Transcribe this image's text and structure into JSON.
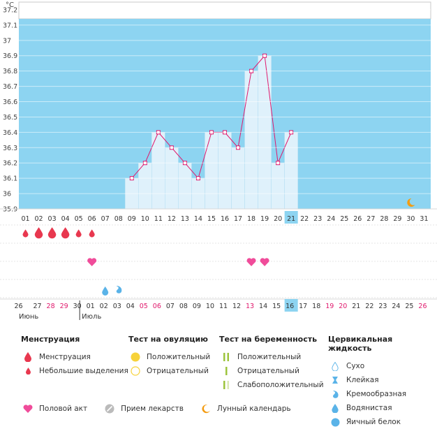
{
  "chart_data": {
    "type": "line",
    "unit": "°C",
    "y_ticks": [
      "37.2",
      "37.1",
      "37",
      "36.9",
      "36.8",
      "36.7",
      "36.6",
      "36.5",
      "36.4",
      "36.3",
      "36.2",
      "36.1",
      "36",
      "35.9"
    ],
    "ylim": [
      35.9,
      37.25
    ],
    "x_days": [
      "01",
      "02",
      "03",
      "04",
      "05",
      "06",
      "07",
      "08",
      "09",
      "10",
      "11",
      "12",
      "13",
      "14",
      "15",
      "16",
      "17",
      "18",
      "19",
      "20",
      "21",
      "22",
      "23",
      "24",
      "25",
      "26",
      "27",
      "28",
      "29",
      "30",
      "31"
    ],
    "highlight_day": "21",
    "series": [
      {
        "values": [
          null,
          null,
          null,
          null,
          null,
          null,
          null,
          null,
          36.1,
          36.2,
          36.4,
          36.3,
          36.2,
          36.1,
          36.4,
          36.4,
          36.3,
          36.8,
          36.9,
          36.2,
          36.4,
          null,
          null,
          null,
          null,
          null,
          null,
          null,
          null,
          null,
          null
        ]
      }
    ],
    "cycle_days": [
      "26",
      "27",
      "28",
      "29",
      "30",
      "01",
      "02",
      "03",
      "04",
      "05",
      "06",
      "07",
      "08",
      "09",
      "10",
      "11",
      "12",
      "13",
      "14",
      "15",
      "16",
      "17",
      "18",
      "19",
      "20",
      "21",
      "22",
      "23",
      "24",
      "25",
      "26"
    ],
    "cycle_red_days": [
      "28",
      "29",
      "05",
      "06",
      "13",
      "19",
      "20",
      "26"
    ],
    "cycle_highlight": "16",
    "month_labels": [
      "Июнь",
      "Июль"
    ],
    "menstruation_heavy_days": [
      "02",
      "03",
      "04"
    ],
    "menstruation_light_days": [
      "01",
      "05",
      "06"
    ],
    "intercourse_days": [
      "06",
      "18",
      "19"
    ],
    "fluid_watery_days": [
      "07"
    ],
    "fluid_creamy_days": [
      "08"
    ],
    "moon_days": [
      "30"
    ]
  },
  "legend": {
    "menstruation": {
      "title": "Менструация",
      "items": [
        "Менструация",
        "Небольшие выделения"
      ]
    },
    "ovulation": {
      "title": "Тест на овуляцию",
      "items": [
        "Положительный",
        "Отрицательный"
      ]
    },
    "pregnancy": {
      "title": "Тест на беременность",
      "items": [
        "Положительный",
        "Отрицательный",
        "Слабоположительный"
      ]
    },
    "cervical": {
      "title": "Цервикальная жидкость",
      "items": [
        "Сухо",
        "Клейкая",
        "Кремообразная",
        "Водянистая",
        "Яичный белок"
      ]
    },
    "other": [
      "Половой акт",
      "Прием лекарств",
      "Лунный календарь"
    ]
  },
  "colors": {
    "plot_bg": "#8dd4f1",
    "bar": "#dff1fb",
    "line": "#e0186c",
    "drop": "#e8384f",
    "heart": "#f04c9a",
    "fluid": "#5ab3e8",
    "moon": "#f39c12",
    "highlight": "#8dd4f1",
    "red_text": "#e0186c"
  }
}
